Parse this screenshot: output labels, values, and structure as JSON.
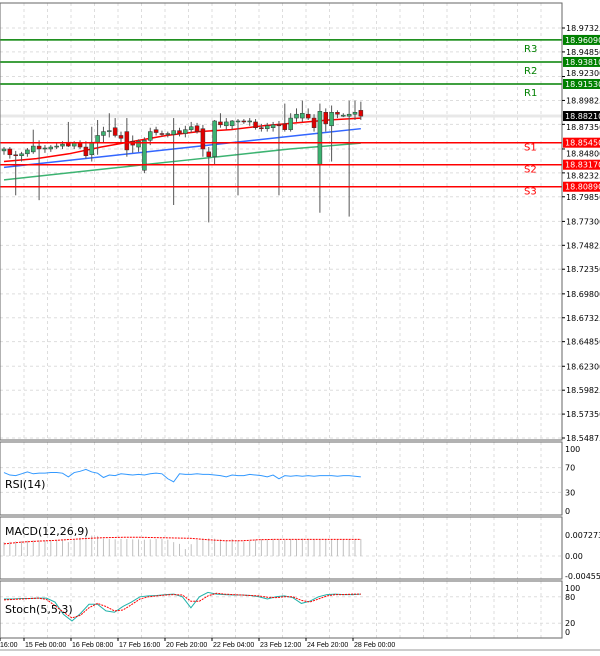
{
  "chart_data": [
    {
      "type": "candlestick",
      "title": "",
      "y_ticks": [
        "18.97325",
        "18.94850",
        "18.92300",
        "18.89825",
        "18.87350",
        "18.84800",
        "18.82325",
        "18.79850",
        "18.77300",
        "18.74825",
        "18.72350",
        "18.69800",
        "18.67325",
        "18.64850",
        "18.62300",
        "18.59825",
        "18.57350",
        "18.54875"
      ],
      "ylim": [
        18.54875,
        18.97325
      ],
      "current_price": "18.88210",
      "levels": [
        {
          "name": "R3",
          "value": "18.96090",
          "color": "#008000"
        },
        {
          "name": "R2",
          "value": "18.93810",
          "color": "#008000"
        },
        {
          "name": "R1",
          "value": "18.91530",
          "color": "#008000"
        },
        {
          "name": "S1",
          "value": "18.85450",
          "color": "#ff0000"
        },
        {
          "name": "S2",
          "value": "18.83170",
          "color": "#ff0000"
        },
        {
          "name": "S3",
          "value": "18.80890",
          "color": "#ff0000"
        }
      ],
      "up_color": "#3cb371",
      "down_color": "#e00000",
      "candles_ohlc": [
        [
          18.846,
          18.85,
          18.842,
          18.848
        ],
        [
          18.848,
          18.85,
          18.838,
          18.842
        ],
        [
          18.842,
          18.846,
          18.8,
          18.841
        ],
        [
          18.841,
          18.845,
          18.835,
          18.843
        ],
        [
          18.843,
          18.849,
          18.84,
          18.847
        ],
        [
          18.845,
          18.868,
          18.843,
          18.851
        ],
        [
          18.851,
          18.857,
          18.795,
          18.848
        ],
        [
          18.848,
          18.852,
          18.844,
          18.849
        ],
        [
          18.848,
          18.852,
          18.845,
          18.85
        ],
        [
          18.85,
          18.854,
          18.848,
          18.851
        ],
        [
          18.851,
          18.856,
          18.848,
          18.853
        ],
        [
          18.855,
          18.876,
          18.85,
          18.851
        ],
        [
          18.851,
          18.856,
          18.848,
          18.854
        ],
        [
          18.854,
          18.857,
          18.848,
          18.85
        ],
        [
          18.85,
          18.856,
          18.838,
          18.841
        ],
        [
          18.842,
          18.871,
          18.835,
          18.855
        ],
        [
          18.855,
          18.878,
          18.842,
          18.862
        ],
        [
          18.862,
          18.871,
          18.855,
          18.866
        ],
        [
          18.866,
          18.885,
          18.86,
          18.867
        ],
        [
          18.87,
          18.88,
          18.86,
          18.862
        ],
        [
          18.862,
          18.866,
          18.855,
          18.859
        ],
        [
          18.866,
          18.88,
          18.84,
          18.847
        ],
        [
          18.856,
          18.862,
          18.844,
          18.852
        ],
        [
          18.85,
          18.858,
          18.845,
          18.856
        ],
        [
          18.826,
          18.86,
          18.823,
          18.857
        ],
        [
          18.857,
          18.87,
          18.852,
          18.866
        ],
        [
          18.868,
          18.871,
          18.862,
          18.865
        ],
        [
          18.864,
          18.867,
          18.861,
          18.863
        ],
        [
          18.863,
          18.866,
          18.86,
          18.864
        ],
        [
          18.863,
          18.88,
          18.79,
          18.867
        ],
        [
          18.867,
          18.87,
          18.861,
          18.864
        ],
        [
          18.864,
          18.872,
          18.86,
          18.868
        ],
        [
          18.868,
          18.876,
          18.865,
          18.871
        ],
        [
          18.872,
          18.875,
          18.864,
          18.866
        ],
        [
          18.869,
          18.873,
          18.84,
          18.848
        ],
        [
          18.845,
          18.85,
          18.772,
          18.84
        ],
        [
          18.84,
          18.878,
          18.832,
          18.877
        ],
        [
          18.876,
          18.885,
          18.87,
          18.873
        ],
        [
          18.872,
          18.88,
          18.868,
          18.876
        ],
        [
          18.872,
          18.878,
          18.868,
          18.877
        ],
        [
          18.876,
          18.879,
          18.8,
          18.877
        ],
        [
          18.877,
          18.879,
          18.874,
          18.876
        ],
        [
          18.876,
          18.88,
          18.872,
          18.877
        ],
        [
          18.876,
          18.879,
          18.868,
          18.87
        ],
        [
          18.87,
          18.874,
          18.866,
          18.869
        ],
        [
          18.869,
          18.875,
          18.866,
          18.872
        ],
        [
          18.87,
          18.876,
          18.866,
          18.873
        ],
        [
          18.873,
          18.877,
          18.8,
          18.872
        ],
        [
          18.874,
          18.895,
          18.866,
          18.868
        ],
        [
          18.868,
          18.885,
          18.866,
          18.88
        ],
        [
          18.88,
          18.89,
          18.876,
          18.884
        ],
        [
          18.88,
          18.898,
          18.876,
          18.885
        ],
        [
          18.884,
          18.89,
          18.878,
          18.88
        ],
        [
          18.88,
          18.884,
          18.866,
          18.87
        ],
        [
          18.832,
          18.895,
          18.782,
          18.887
        ],
        [
          18.886,
          18.89,
          18.866,
          18.874
        ],
        [
          18.872,
          18.893,
          18.835,
          18.886
        ],
        [
          18.886,
          18.888,
          18.88,
          18.884
        ],
        [
          18.883,
          18.885,
          18.881,
          18.883
        ],
        [
          18.882,
          18.898,
          18.778,
          18.884
        ],
        [
          18.884,
          18.898,
          18.878,
          18.886
        ],
        [
          18.888,
          18.897,
          18.878,
          18.882
        ]
      ],
      "moving_averages": [
        {
          "color": "#ff0000",
          "values": [
            18.835,
            18.838,
            18.843,
            18.85,
            18.856,
            18.862,
            18.866,
            18.868,
            18.872,
            18.875,
            18.878,
            18.88
          ]
        },
        {
          "color": "#3366ff",
          "values": [
            18.829,
            18.833,
            18.837,
            18.841,
            18.845,
            18.849,
            18.853,
            18.857,
            18.861,
            18.865,
            18.869
          ]
        },
        {
          "color": "#3cb371",
          "values": [
            18.816,
            18.82,
            18.824,
            18.828,
            18.832,
            18.836,
            18.84,
            18.844,
            18.848,
            18.851,
            18.854
          ]
        }
      ]
    },
    {
      "type": "line",
      "title": "RSI(14)",
      "y_ticks": [
        "100",
        "70",
        "30",
        "0"
      ],
      "ylim": [
        0,
        100
      ],
      "color": "#3399ff",
      "values": [
        62,
        58,
        57,
        60,
        63,
        60,
        61,
        61,
        62,
        62,
        61,
        55,
        62,
        64,
        67,
        63,
        61,
        54,
        58,
        57,
        60,
        59,
        58,
        59,
        58,
        60,
        61,
        60,
        52,
        47,
        60,
        59,
        59,
        60,
        59,
        59,
        58,
        57,
        55,
        58,
        57,
        57,
        59,
        58,
        57,
        55,
        58,
        52,
        57,
        56,
        57,
        56,
        57,
        56,
        57,
        57,
        57,
        56,
        57,
        57,
        56,
        55
      ]
    },
    {
      "type": "bar+line",
      "title": "MACD(12,26,9)",
      "y_ticks": [
        "0.007273",
        "0.00",
        "-0.004557"
      ],
      "ylim": [
        -0.004557,
        0.007273
      ],
      "hist_color": "#c0c0c0",
      "signal_color": "#ff0000",
      "histogram": [
        0.004,
        0.0041,
        0.0042,
        0.0043,
        0.0044,
        0.0045,
        0.0045,
        0.0045,
        0.0046,
        0.0046,
        0.0046,
        0.004,
        0.0047,
        0.0053,
        0.0058,
        0.0059,
        0.0058,
        0.005,
        0.0049,
        0.0048,
        0.0049,
        0.0049,
        0.0048,
        0.0048,
        0.0047,
        0.0048,
        0.0049,
        0.0049,
        0.0047,
        0.004,
        0.0035,
        0.002,
        0.0034,
        0.0046,
        0.005,
        0.0051,
        0.005,
        0.0048,
        0.0045,
        0.0049,
        0.0044,
        0.0042,
        0.0044,
        0.0047,
        0.0048,
        0.0047,
        0.0048,
        0.0047,
        0.0046,
        0.0048,
        0.0049,
        0.005,
        0.005,
        0.0049,
        0.0049,
        0.0048,
        0.0048,
        0.0048,
        0.0049,
        0.0049,
        0.0049,
        0.0049
      ],
      "signal": [
        0.0035,
        0.004,
        0.0043,
        0.0045,
        0.0048,
        0.0051,
        0.0053,
        0.0054,
        0.0054,
        0.0053,
        0.0052,
        0.0051,
        0.0047,
        0.0044,
        0.0044,
        0.0047,
        0.0048,
        0.0048,
        0.0048,
        0.0048,
        0.0048,
        0.0048
      ]
    },
    {
      "type": "line",
      "title": "Stoch(5,5,3)",
      "y_ticks": [
        "100",
        "80",
        "20",
        "0"
      ],
      "ylim": [
        0,
        100
      ],
      "main_color": "#20b2aa",
      "signal_color": "#ff0000",
      "main": [
        75,
        75,
        76,
        76,
        77,
        77,
        68,
        40,
        25,
        42,
        63,
        63,
        48,
        45,
        58,
        68,
        80,
        82,
        83,
        85,
        86,
        80,
        55,
        80,
        90,
        86,
        85,
        84,
        84,
        83,
        80,
        75,
        80,
        82,
        78,
        65,
        70,
        80,
        85,
        86,
        85,
        85,
        86
      ],
      "signal": [
        73,
        74,
        75,
        76,
        77,
        74,
        60,
        45,
        32,
        38,
        55,
        65,
        58,
        48,
        50,
        62,
        75,
        80,
        82,
        84,
        85,
        84,
        70,
        70,
        82,
        88,
        86,
        85,
        84,
        83,
        82,
        79,
        78,
        80,
        80,
        72,
        68,
        75,
        82,
        85,
        85,
        86,
        86
      ]
    }
  ],
  "x_ticks": [
    "16:00",
    "15 Feb 00:00",
    "16 Feb 08:00",
    "17 Feb 16:00",
    "20 Feb 20:00",
    "22 Feb 04:00",
    "23 Feb 12:00",
    "24 Feb 20:00",
    "28 Feb 00:00"
  ]
}
